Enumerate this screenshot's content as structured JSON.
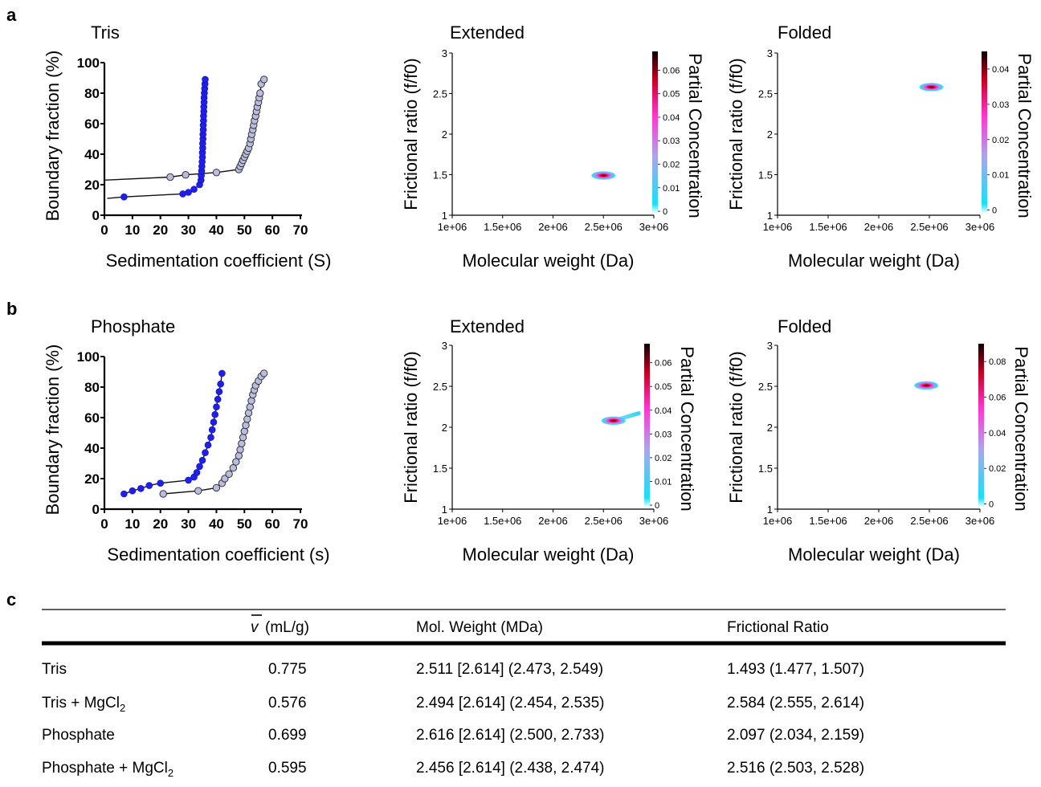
{
  "panels": {
    "a": {
      "letter": "a"
    },
    "b": {
      "letter": "b"
    },
    "c": {
      "letter": "c"
    }
  },
  "chart_data": [
    {
      "id": "a-left",
      "type": "scatter",
      "title": "Tris",
      "xlabel": "Sedimentation coefficient (S)",
      "ylabel": "Boundary fraction (%)",
      "xlim": [
        0,
        70
      ],
      "ylim": [
        0,
        100
      ],
      "xticks": [
        0,
        10,
        20,
        30,
        40,
        50,
        60,
        70
      ],
      "yticks": [
        0,
        20,
        40,
        60,
        80,
        100
      ],
      "series": [
        {
          "color": "#1f1fe6",
          "x": [
            1,
            7,
            28,
            30,
            32,
            34,
            34.5,
            34.6,
            34.7,
            34.8,
            34.9,
            35,
            35,
            35.1,
            35.1,
            35.2,
            35.2,
            35.3,
            35.3,
            35.4,
            35.4,
            35.5,
            35.5,
            35.6,
            35.6,
            35.7,
            35.8,
            35.9,
            36
          ],
          "y": [
            11,
            12,
            14,
            15,
            17,
            20,
            23,
            26,
            29,
            32,
            35,
            38,
            41,
            44,
            47,
            50,
            53,
            56,
            59,
            62,
            65,
            68,
            71,
            74,
            77,
            80,
            83,
            86,
            89
          ]
        },
        {
          "color": "#b9bde0",
          "x": [
            0,
            23.5,
            29,
            40,
            48,
            48.5,
            49,
            49.5,
            50,
            50.5,
            51,
            51.5,
            52,
            52.3,
            52.6,
            53,
            53.3,
            53.6,
            54,
            54.3,
            54.6,
            55,
            55.3,
            55.6,
            56,
            57
          ],
          "y": [
            23,
            25,
            26.5,
            28,
            30,
            32,
            34,
            36,
            38,
            40,
            42,
            44,
            47,
            50,
            53,
            56,
            59,
            62,
            65,
            68,
            71,
            74,
            77,
            80,
            86,
            89
          ]
        }
      ]
    },
    {
      "id": "a-mid",
      "type": "heatmap",
      "title": "Extended",
      "xlabel": "Molecular weight (Da)",
      "ylabel": "Frictional ratio (f/f0)",
      "colorbar_label": "Partial Concentration",
      "xlim": [
        1000000,
        3000000
      ],
      "ylim": [
        1,
        3
      ],
      "xticks": [
        "1e+06",
        "1.5e+06",
        "2e+06",
        "2.5e+06",
        "3e+06"
      ],
      "yticks": [
        "1",
        "1.5",
        "2",
        "2.5",
        "3"
      ],
      "colorbar_ticks": [
        "0",
        "0.01",
        "0.02",
        "0.03",
        "0.04",
        "0.05",
        "0.06"
      ],
      "colorbar_max": 0.068,
      "peaks": [
        {
          "x": 2500000,
          "y": 1.49,
          "x_end": 2500000,
          "y_end": 1.49
        }
      ]
    },
    {
      "id": "a-right",
      "type": "heatmap",
      "title": "Folded",
      "xlabel": "Molecular weight (Da)",
      "ylabel": "Frictional ratio (f/f0)",
      "colorbar_label": "Partial Concentration",
      "xlim": [
        1000000,
        3000000
      ],
      "ylim": [
        1,
        3
      ],
      "xticks": [
        "1e+06",
        "1.5e+06",
        "2e+06",
        "2.5e+06",
        "3e+06"
      ],
      "yticks": [
        "1",
        "1.5",
        "2",
        "2.5",
        "3"
      ],
      "colorbar_ticks": [
        "0",
        "0.01",
        "0.02",
        "0.03",
        "0.04"
      ],
      "colorbar_max": 0.045,
      "peaks": [
        {
          "x": 2520000,
          "y": 2.58,
          "x_end": 2520000,
          "y_end": 2.58
        }
      ]
    },
    {
      "id": "b-left",
      "type": "scatter",
      "title": "Phosphate",
      "xlabel": "Sedimentation coefficient (s)",
      "ylabel": "Boundary fraction (%)",
      "xlim": [
        0,
        70
      ],
      "ylim": [
        0,
        100
      ],
      "xticks": [
        0,
        10,
        20,
        30,
        40,
        50,
        60,
        70
      ],
      "yticks": [
        0,
        20,
        40,
        60,
        80,
        100
      ],
      "series": [
        {
          "color": "#1f1fe6",
          "x": [
            7,
            10,
            13,
            16,
            20,
            30,
            32,
            33,
            34,
            35,
            36,
            37,
            38,
            38.5,
            39,
            39.5,
            40,
            40.5,
            41,
            41.5,
            42
          ],
          "y": [
            10,
            12,
            13.5,
            15.5,
            17,
            19,
            21,
            24,
            28,
            32,
            37,
            42,
            47,
            52,
            57,
            62,
            67,
            72,
            77,
            82,
            89
          ]
        },
        {
          "color": "#b9bde0",
          "x": [
            21,
            33.5,
            40,
            42,
            43,
            44.5,
            46,
            47,
            48,
            48.5,
            49,
            49.5,
            50,
            50.5,
            51,
            51.5,
            52,
            52.5,
            53,
            53.5,
            54,
            55,
            56,
            57
          ],
          "y": [
            10,
            12,
            14,
            17,
            20,
            23,
            27,
            31,
            35,
            39,
            43,
            47,
            51,
            55,
            59,
            63,
            67,
            71,
            75,
            78,
            81,
            84,
            87,
            89
          ]
        }
      ]
    },
    {
      "id": "b-mid",
      "type": "heatmap",
      "title": "Extended",
      "xlabel": "Molecular weight (Da)",
      "ylabel": "Frictional ratio (f/f0)",
      "colorbar_label": "Partial Concentration",
      "xlim": [
        1000000,
        3000000
      ],
      "ylim": [
        1,
        3
      ],
      "xticks": [
        "1e+06",
        "1.5e+06",
        "2e+06",
        "2.5e+06",
        "3e+06"
      ],
      "yticks": [
        "1",
        "1.5",
        "2",
        "2.5",
        "3"
      ],
      "colorbar_ticks": [
        "0",
        "0.01",
        "0.02",
        "0.03",
        "0.04",
        "0.05",
        "0.06"
      ],
      "colorbar_max": 0.068,
      "peaks": [
        {
          "x": 2600000,
          "y": 2.08,
          "x_end": 2850000,
          "y_end": 2.17
        }
      ]
    },
    {
      "id": "b-right",
      "type": "heatmap",
      "title": "Folded",
      "xlabel": "Molecular weight (Da)",
      "ylabel": "Frictional ratio (f/f0)",
      "colorbar_label": "Partial Concentration",
      "xlim": [
        1000000,
        3000000
      ],
      "ylim": [
        1,
        3
      ],
      "xticks": [
        "1e+06",
        "1.5e+06",
        "2e+06",
        "2.5e+06",
        "3e+06"
      ],
      "yticks": [
        "1",
        "1.5",
        "2",
        "2.5",
        "3"
      ],
      "colorbar_ticks": [
        "0",
        "0.02",
        "0.04",
        "0.06",
        "0.08"
      ],
      "colorbar_max": 0.09,
      "peaks": [
        {
          "x": 2470000,
          "y": 2.51,
          "x_end": 2470000,
          "y_end": 2.51
        }
      ]
    },
    {
      "id": "c-table",
      "type": "table",
      "columns": [
        "",
        "v (mL/g)",
        "Mol. Weight (MDa)",
        "Frictional Ratio"
      ],
      "rows": [
        [
          "Tris",
          "0.775",
          "2.511 [2.614] (2.473, 2.549)",
          "1.493 (1.477, 1.507)"
        ],
        [
          "Tris + MgCl2",
          "0.576",
          "2.494 [2.614] (2.454, 2.535)",
          "2.584 (2.555, 2.614)"
        ],
        [
          "Phosphate",
          "0.699",
          "2.616 [2.614] (2.500, 2.733)",
          "2.097 (2.034, 2.159)"
        ],
        [
          "Phosphate + MgCl2",
          "0.595",
          "2.456 [2.614] (2.438, 2.474)",
          "2.516 (2.503, 2.528)"
        ]
      ]
    }
  ]
}
